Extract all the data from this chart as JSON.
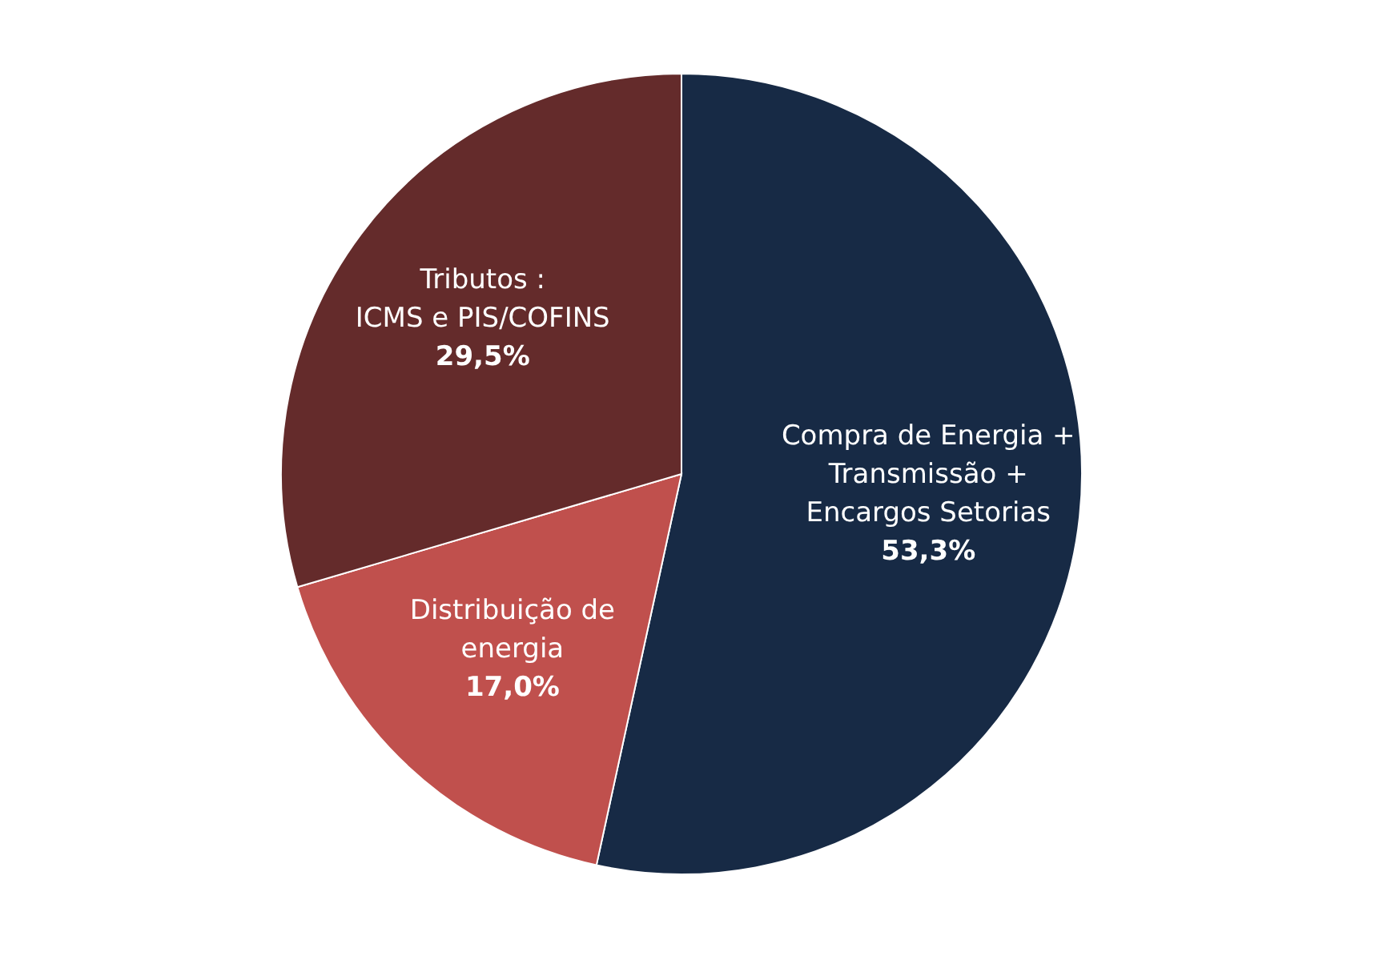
{
  "chart_data": {
    "type": "pie",
    "categories": [
      "Compra de Energia +\nTransmissão +\nEncargos Setorias",
      "Distribuição de\nenergia",
      "Tributos :\nICMS e PIS/COFINS"
    ],
    "values": [
      53.3,
      17.0,
      29.5
    ],
    "value_labels": [
      "53,3%",
      "17,0%",
      "29,5%"
    ],
    "colors": [
      "#172a45",
      "#c0504d",
      "#642b2b"
    ],
    "legend": false
  }
}
